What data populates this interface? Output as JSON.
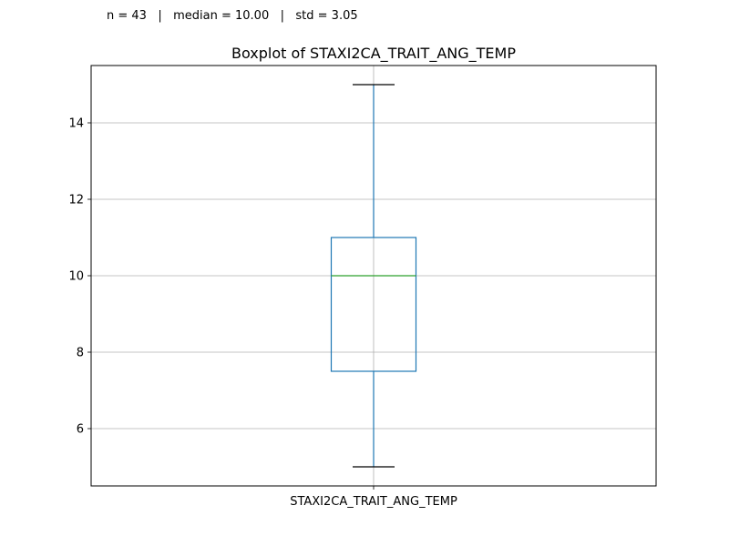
{
  "stats_text": "n = 43   |   median = 10.00   |   std = 3.05",
  "chart_data": {
    "type": "boxplot",
    "title": "Boxplot of STAXI2CA_TRAIT_ANG_TEMP",
    "categories": [
      "STAXI2CA_TRAIT_ANG_TEMP"
    ],
    "xlabel": "",
    "ylabel": "",
    "ylim": [
      4.5,
      15.5
    ],
    "yticks": [
      6,
      8,
      10,
      12,
      14
    ],
    "grid": true,
    "boxes": [
      {
        "name": "STAXI2CA_TRAIT_ANG_TEMP",
        "whisker_low": 5,
        "q1": 7.5,
        "median": 10,
        "q3": 11,
        "whisker_high": 15
      }
    ],
    "colors": {
      "box": "#1f77b4",
      "median": "#2ca02c",
      "caps": "#000000",
      "grid": "#b0b0b0"
    }
  }
}
